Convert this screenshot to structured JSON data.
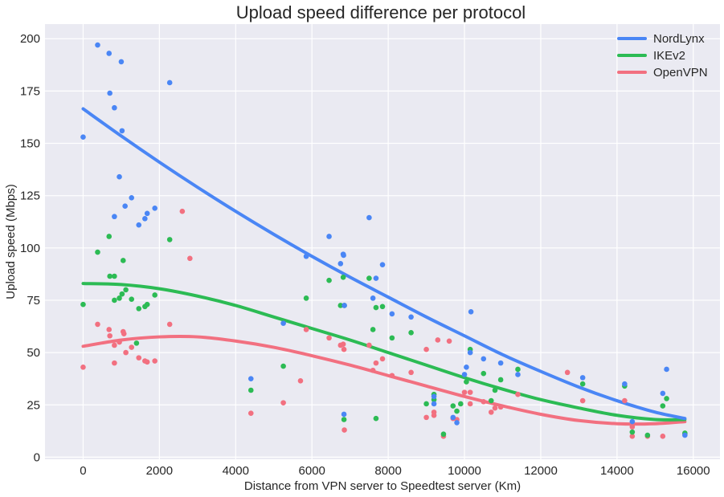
{
  "chart_data": {
    "type": "scatter",
    "title": "Upload speed difference per protocol",
    "xlabel": "Distance from VPN server to Speedtest server (Km)",
    "ylabel": "Upload speed (Mbps)",
    "xlim": [
      -1000,
      16700
    ],
    "ylim": [
      -1,
      207
    ],
    "xticks": [
      0,
      2000,
      4000,
      6000,
      8000,
      10000,
      12000,
      14000,
      16000
    ],
    "yticks": [
      0,
      25,
      50,
      75,
      100,
      125,
      150,
      175,
      200
    ],
    "grid": true,
    "legend_position": "top-right",
    "series": [
      {
        "name": "NordLynx",
        "color": "#4a86f5",
        "points": [
          [
            0,
            153
          ],
          [
            380,
            197
          ],
          [
            680,
            193
          ],
          [
            700,
            174
          ],
          [
            820,
            167
          ],
          [
            1000,
            189
          ],
          [
            1020,
            156
          ],
          [
            950,
            134
          ],
          [
            1100,
            120
          ],
          [
            1270,
            124
          ],
          [
            1460,
            111
          ],
          [
            1620,
            114
          ],
          [
            1680,
            116.5
          ],
          [
            1880,
            119
          ],
          [
            820,
            115
          ],
          [
            2270,
            179
          ],
          [
            4400,
            37.5
          ],
          [
            5250,
            64
          ],
          [
            5850,
            96
          ],
          [
            6450,
            105.5
          ],
          [
            6750,
            92.5
          ],
          [
            6820,
            97
          ],
          [
            6830,
            96.5
          ],
          [
            6850,
            72.5
          ],
          [
            6840,
            20.5
          ],
          [
            7500,
            114.5
          ],
          [
            7600,
            76
          ],
          [
            7680,
            85.5
          ],
          [
            7850,
            92
          ],
          [
            8100,
            68.5
          ],
          [
            8600,
            67
          ],
          [
            9200,
            25.5
          ],
          [
            9200,
            29
          ],
          [
            9700,
            19
          ],
          [
            9800,
            16.5
          ],
          [
            10000,
            39.5
          ],
          [
            10050,
            43
          ],
          [
            10150,
            50
          ],
          [
            10170,
            69.5
          ],
          [
            10500,
            47
          ],
          [
            10950,
            45
          ],
          [
            11400,
            39.5
          ],
          [
            13100,
            38
          ],
          [
            14200,
            35
          ],
          [
            14400,
            17
          ],
          [
            15200,
            30.5
          ],
          [
            15300,
            42
          ],
          [
            15780,
            10.5
          ]
        ],
        "trend": [
          [
            0,
            166.5
          ],
          [
            1000,
            153.5
          ],
          [
            2000,
            141
          ],
          [
            3000,
            129
          ],
          [
            4000,
            117.5
          ],
          [
            5000,
            106.5
          ],
          [
            6000,
            96
          ],
          [
            7000,
            86
          ],
          [
            8000,
            76.5
          ],
          [
            9000,
            67
          ],
          [
            10000,
            58
          ],
          [
            11000,
            49
          ],
          [
            12000,
            41
          ],
          [
            13000,
            33.5
          ],
          [
            14000,
            27
          ],
          [
            15000,
            21.5
          ],
          [
            15780,
            18.5
          ]
        ]
      },
      {
        "name": "IKEv2",
        "color": "#2cbb54",
        "points": [
          [
            0,
            73
          ],
          [
            380,
            98
          ],
          [
            680,
            105.5
          ],
          [
            700,
            86.5
          ],
          [
            820,
            86.5
          ],
          [
            820,
            75
          ],
          [
            950,
            76
          ],
          [
            1020,
            78
          ],
          [
            1050,
            94
          ],
          [
            1120,
            80
          ],
          [
            1270,
            75.5
          ],
          [
            1400,
            54.5
          ],
          [
            1460,
            71
          ],
          [
            1620,
            72
          ],
          [
            1680,
            73
          ],
          [
            1880,
            77.5
          ],
          [
            2270,
            104
          ],
          [
            4400,
            32
          ],
          [
            5250,
            43.5
          ],
          [
            5850,
            76
          ],
          [
            6450,
            84.5
          ],
          [
            6750,
            72.5
          ],
          [
            6820,
            86
          ],
          [
            6850,
            72.5
          ],
          [
            6840,
            18
          ],
          [
            7500,
            85.5
          ],
          [
            7600,
            61
          ],
          [
            7680,
            71.5
          ],
          [
            7680,
            18.5
          ],
          [
            7850,
            72
          ],
          [
            8100,
            57
          ],
          [
            8600,
            59.5
          ],
          [
            9000,
            25.5
          ],
          [
            9200,
            30
          ],
          [
            9200,
            27.5
          ],
          [
            9450,
            11
          ],
          [
            9700,
            24.5
          ],
          [
            9800,
            22
          ],
          [
            9900,
            25.5
          ],
          [
            10050,
            36
          ],
          [
            10150,
            51.5
          ],
          [
            10500,
            40
          ],
          [
            10700,
            27
          ],
          [
            10800,
            32
          ],
          [
            10950,
            37
          ],
          [
            11400,
            42
          ],
          [
            13100,
            35
          ],
          [
            14200,
            34
          ],
          [
            14400,
            12
          ],
          [
            14800,
            10.5
          ],
          [
            15200,
            24.5
          ],
          [
            15300,
            28
          ],
          [
            15780,
            11.5
          ]
        ],
        "trend": [
          [
            0,
            83
          ],
          [
            1000,
            82.5
          ],
          [
            2000,
            80.5
          ],
          [
            3000,
            77
          ],
          [
            4000,
            72.5
          ],
          [
            5000,
            67
          ],
          [
            6000,
            61.5
          ],
          [
            7000,
            56
          ],
          [
            8000,
            50
          ],
          [
            9000,
            44
          ],
          [
            10000,
            38
          ],
          [
            11000,
            32.5
          ],
          [
            12000,
            27.5
          ],
          [
            13000,
            23.5
          ],
          [
            14000,
            20
          ],
          [
            15000,
            18
          ],
          [
            15780,
            18
          ]
        ]
      },
      {
        "name": "OpenVPN",
        "color": "#f27080",
        "points": [
          [
            0,
            43
          ],
          [
            380,
            63.5
          ],
          [
            680,
            61
          ],
          [
            700,
            58
          ],
          [
            820,
            53.5
          ],
          [
            820,
            45
          ],
          [
            950,
            55
          ],
          [
            1050,
            60
          ],
          [
            1070,
            59
          ],
          [
            1120,
            50
          ],
          [
            1270,
            52.5
          ],
          [
            1460,
            47.5
          ],
          [
            1620,
            46
          ],
          [
            1680,
            45.5
          ],
          [
            1880,
            46
          ],
          [
            2270,
            63.5
          ],
          [
            2600,
            117.5
          ],
          [
            2800,
            95
          ],
          [
            4400,
            21
          ],
          [
            5250,
            26
          ],
          [
            5700,
            36.5
          ],
          [
            5850,
            61
          ],
          [
            6450,
            57
          ],
          [
            6750,
            53.5
          ],
          [
            6820,
            54
          ],
          [
            6840,
            51.5
          ],
          [
            6850,
            13
          ],
          [
            7500,
            53.5
          ],
          [
            7600,
            41.5
          ],
          [
            7680,
            45
          ],
          [
            7850,
            47
          ],
          [
            8100,
            39
          ],
          [
            8600,
            40.5
          ],
          [
            9000,
            51.5
          ],
          [
            9000,
            19
          ],
          [
            9200,
            21.5
          ],
          [
            9200,
            20
          ],
          [
            9300,
            56
          ],
          [
            9450,
            10
          ],
          [
            9600,
            55.5
          ],
          [
            9700,
            18.5
          ],
          [
            9800,
            18
          ],
          [
            10000,
            31
          ],
          [
            10150,
            31
          ],
          [
            10150,
            25.5
          ],
          [
            10500,
            26.5
          ],
          [
            10700,
            21.5
          ],
          [
            10800,
            23.5
          ],
          [
            10950,
            24
          ],
          [
            11400,
            30
          ],
          [
            12700,
            40.5
          ],
          [
            13100,
            27
          ],
          [
            14200,
            27
          ],
          [
            14400,
            14.5
          ],
          [
            14400,
            10
          ],
          [
            14800,
            10
          ],
          [
            15200,
            10
          ],
          [
            15780,
            11
          ]
        ],
        "trend": [
          [
            0,
            53
          ],
          [
            1000,
            56
          ],
          [
            2000,
            57.5
          ],
          [
            3000,
            57.5
          ],
          [
            4000,
            55.5
          ],
          [
            5000,
            52.5
          ],
          [
            6000,
            48.5
          ],
          [
            7000,
            44
          ],
          [
            8000,
            39
          ],
          [
            9000,
            34
          ],
          [
            10000,
            29
          ],
          [
            11000,
            24.5
          ],
          [
            12000,
            20.5
          ],
          [
            13000,
            17.5
          ],
          [
            14000,
            16
          ],
          [
            15000,
            16
          ],
          [
            15780,
            17
          ]
        ]
      }
    ]
  }
}
